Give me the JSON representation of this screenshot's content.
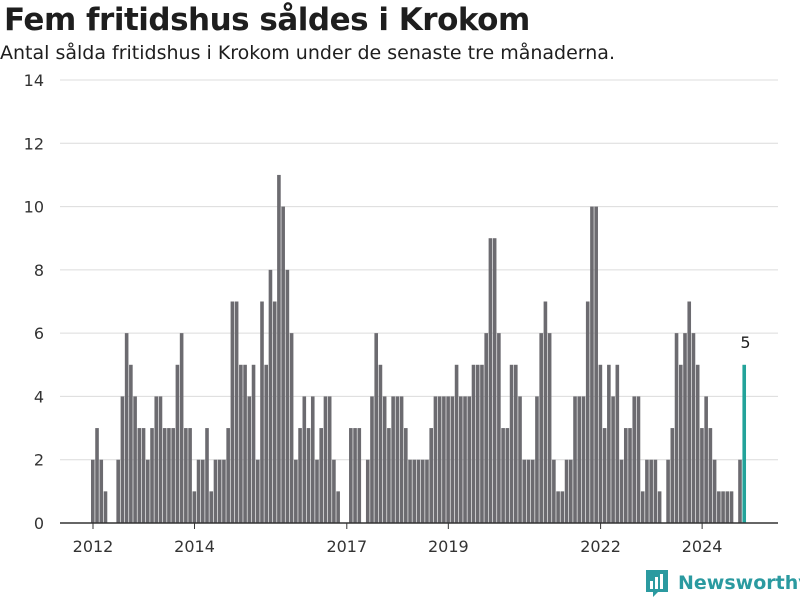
{
  "title": "Fem fritidshus såldes i Krokom",
  "subtitle": "Antal sålda fritidshus i Krokom under de senaste tre månaderna.",
  "brand": {
    "name": "Newsworthy",
    "icon": "newsworthy-logo-icon",
    "color": "#2b9aa0"
  },
  "chart_data": {
    "type": "bar",
    "title": "Fem fritidshus såldes i Krokom",
    "subtitle": "Antal sålda fritidshus i Krokom under de senaste tre månaderna.",
    "xlabel": "",
    "ylabel": "",
    "ylim": [
      0,
      14
    ],
    "yticks": [
      0,
      2,
      4,
      6,
      8,
      10,
      12,
      14
    ],
    "xticks": [
      {
        "label": "2012",
        "date": "2012-01"
      },
      {
        "label": "2014",
        "date": "2014-01"
      },
      {
        "label": "2017",
        "date": "2017-01"
      },
      {
        "label": "2019",
        "date": "2019-01"
      },
      {
        "label": "2022",
        "date": "2022-01"
      },
      {
        "label": "2024",
        "date": "2024-01"
      }
    ],
    "grid": "horizontal",
    "bar_color": "#6c6b70",
    "highlight_color": "#23a39a",
    "start_month": "2012-01",
    "values": [
      2,
      3,
      2,
      1,
      0,
      0,
      2,
      4,
      6,
      5,
      4,
      3,
      3,
      2,
      3,
      4,
      4,
      3,
      3,
      3,
      5,
      6,
      3,
      3,
      1,
      2,
      2,
      3,
      1,
      2,
      2,
      2,
      3,
      7,
      7,
      5,
      5,
      4,
      5,
      2,
      7,
      5,
      8,
      7,
      11,
      10,
      8,
      6,
      2,
      3,
      4,
      3,
      4,
      2,
      3,
      4,
      4,
      2,
      1,
      0,
      0,
      3,
      3,
      3,
      0,
      2,
      4,
      6,
      5,
      4,
      3,
      4,
      4,
      4,
      3,
      2,
      2,
      2,
      2,
      2,
      3,
      4,
      4,
      4,
      4,
      4,
      5,
      4,
      4,
      4,
      5,
      5,
      5,
      6,
      9,
      9,
      6,
      3,
      3,
      5,
      5,
      4,
      2,
      2,
      2,
      4,
      6,
      7,
      6,
      2,
      1,
      1,
      2,
      2,
      4,
      4,
      4,
      7,
      10,
      10,
      5,
      3,
      5,
      4,
      5,
      2,
      3,
      3,
      4,
      4,
      1,
      2,
      2,
      2,
      1,
      0,
      2,
      3,
      6,
      5,
      6,
      7,
      6,
      5,
      3,
      4,
      3,
      2,
      1,
      1,
      1,
      1,
      0,
      2,
      5
    ],
    "highlight_label": "5"
  }
}
